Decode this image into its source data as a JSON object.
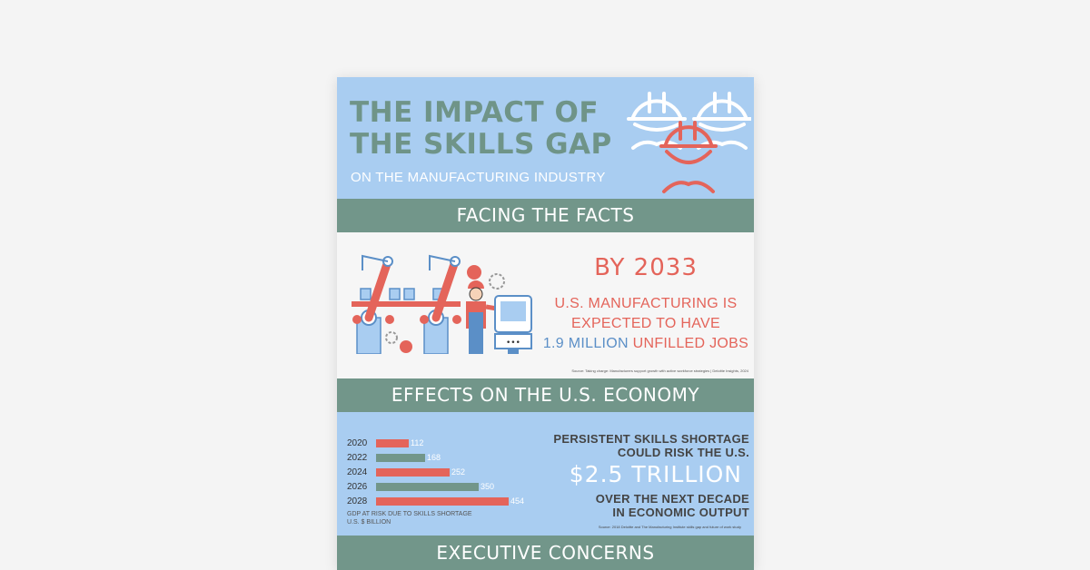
{
  "header": {
    "title_line1": "THE IMPACT OF",
    "title_line2": "THE SKILLS GAP",
    "subtitle": "ON THE MANUFACTURING INDUSTRY"
  },
  "sections": {
    "facing_facts": "FACING THE FACTS",
    "economy": "EFFECTS ON THE U.S. ECONOMY",
    "executive": "EXECUTIVE CONCERNS"
  },
  "facts": {
    "year": "BY 2033",
    "line1": "U.S. MANUFACTURING IS",
    "line2": "EXPECTED TO HAVE",
    "highlight": "1.9 MILLION",
    "tail": "UNFILLED JOBS",
    "source": "Source: Taking charge: Manufacturers support growth with active workforce strategies | Deloitte Insights, 2024"
  },
  "chart_data": {
    "type": "bar",
    "orientation": "horizontal",
    "categories": [
      "2020",
      "2022",
      "2024",
      "2026",
      "2028"
    ],
    "values": [
      112,
      168,
      252,
      350,
      454
    ],
    "caption_line1": "GDP AT RISK DUE TO SKILLS SHORTAGE",
    "caption_line2": "U.S. $ BILLION",
    "colors": [
      "#e4645a",
      "#72968a",
      "#e4645a",
      "#72968a",
      "#e4645a"
    ]
  },
  "economy": {
    "line1": "PERSISTENT SKILLS SHORTAGE",
    "line2": "COULD RISK THE U.S.",
    "amount": "$2.5 TRILLION",
    "line3": "OVER THE NEXT DECADE",
    "line4": "IN ECONOMIC OUTPUT",
    "source": "Source: 2018 Deloitte and The Manufacturing Institute skills gap and future of work study"
  },
  "colors": {
    "sky": "#a9cdf1",
    "sage": "#72968a",
    "coral": "#e4645a",
    "blue": "#5b8fc7"
  },
  "icons": [
    "hard-hat-worker-icon",
    "robot-arm-icon",
    "gear-icon",
    "control-panel-icon"
  ]
}
